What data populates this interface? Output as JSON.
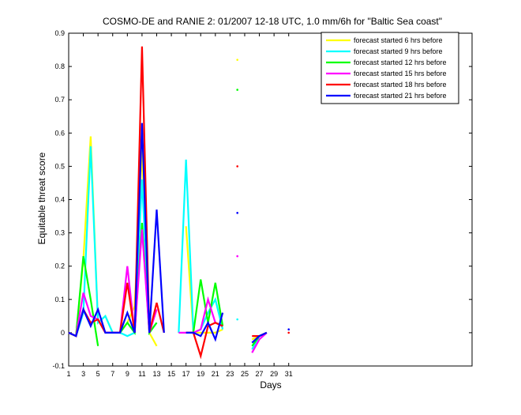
{
  "chart_data": {
    "type": "line",
    "title": "COSMO-DE and RANIE 2: 01/2007 12-18 UTC, 1.0 mm/6h for \"Baltic Sea coast\"",
    "xlabel": "Days",
    "ylabel": "Equitable threat score",
    "xlim": [
      1,
      56
    ],
    "ylim": [
      -0.1,
      0.9
    ],
    "xticks": [
      1,
      3,
      5,
      7,
      9,
      11,
      13,
      15,
      17,
      19,
      21,
      23,
      25,
      27,
      29,
      31
    ],
    "yticks": [
      -0.1,
      0,
      0.1,
      0.2,
      0.3,
      0.4,
      0.5,
      0.6,
      0.7,
      0.8,
      0.9
    ],
    "ytick_labels": [
      "-0.1",
      "0",
      "0.1",
      "0.2",
      "0.3",
      "0.4",
      "0.5",
      "0.6",
      "0.7",
      "0.8",
      "0.9"
    ],
    "grid": false,
    "legend_position": "top-right",
    "series": [
      {
        "name": "forecast started 6 hrs before",
        "color": "#ffff00",
        "values": [
          0,
          -0.01,
          0.22,
          0.59,
          0.03,
          0.05,
          0,
          0,
          0.03,
          0.08,
          0.55,
          0,
          -0.04,
          null,
          null,
          null,
          0.32,
          0,
          0,
          0,
          0,
          0.01,
          null,
          0.82,
          null,
          -0.02,
          -0.01,
          0,
          null,
          null,
          null
        ]
      },
      {
        "name": "forecast started 9 hrs before",
        "color": "#00ffff",
        "values": [
          0,
          -0.01,
          0.06,
          0.56,
          0.03,
          0.05,
          0,
          0,
          -0.01,
          0,
          0.46,
          0,
          0.03,
          null,
          null,
          0,
          0.52,
          0,
          0.01,
          0.06,
          0.1,
          0.01,
          null,
          0.04,
          null,
          -0.05,
          -0.01,
          0,
          null,
          null,
          null
        ]
      },
      {
        "name": "forecast started 12 hrs before",
        "color": "#00ff00",
        "values": [
          0,
          -0.01,
          0.23,
          0.1,
          -0.04,
          null,
          null,
          0,
          0.03,
          0,
          0.33,
          0,
          0.03,
          null,
          null,
          null,
          0,
          0,
          0.16,
          0.03,
          0.15,
          0.02,
          null,
          0.73,
          null,
          -0.04,
          -0.01,
          0,
          null,
          null,
          null
        ]
      },
      {
        "name": "forecast started 15 hrs before",
        "color": "#ff00ff",
        "values": [
          0,
          -0.01,
          0.12,
          0.05,
          0.04,
          0,
          0,
          0,
          0.2,
          0,
          0.31,
          0,
          0.07,
          null,
          null,
          0,
          0,
          0,
          0.01,
          0.1,
          0.03,
          0.02,
          null,
          0.23,
          null,
          -0.06,
          -0.02,
          0,
          null,
          null,
          null
        ]
      },
      {
        "name": "forecast started 18 hrs before",
        "color": "#ff0000",
        "values": [
          0,
          -0.01,
          0.07,
          0.03,
          0.04,
          0,
          0,
          0,
          0.15,
          0,
          0.86,
          0,
          0.09,
          0,
          null,
          null,
          0,
          0,
          -0.07,
          0.02,
          0.03,
          0.02,
          null,
          0.5,
          null,
          -0.01,
          -0.01,
          0,
          null,
          null,
          0
        ]
      },
      {
        "name": "forecast started 21 hrs before",
        "color": "#0000ff",
        "values": [
          0,
          -0.01,
          0.07,
          0.02,
          0.07,
          0,
          0,
          0,
          0.06,
          0,
          0.63,
          0,
          0.37,
          0,
          null,
          null,
          0,
          0,
          -0.01,
          0.03,
          -0.02,
          0.06,
          null,
          0.36,
          null,
          -0.03,
          -0.01,
          0,
          null,
          null,
          0.01
        ]
      }
    ]
  }
}
